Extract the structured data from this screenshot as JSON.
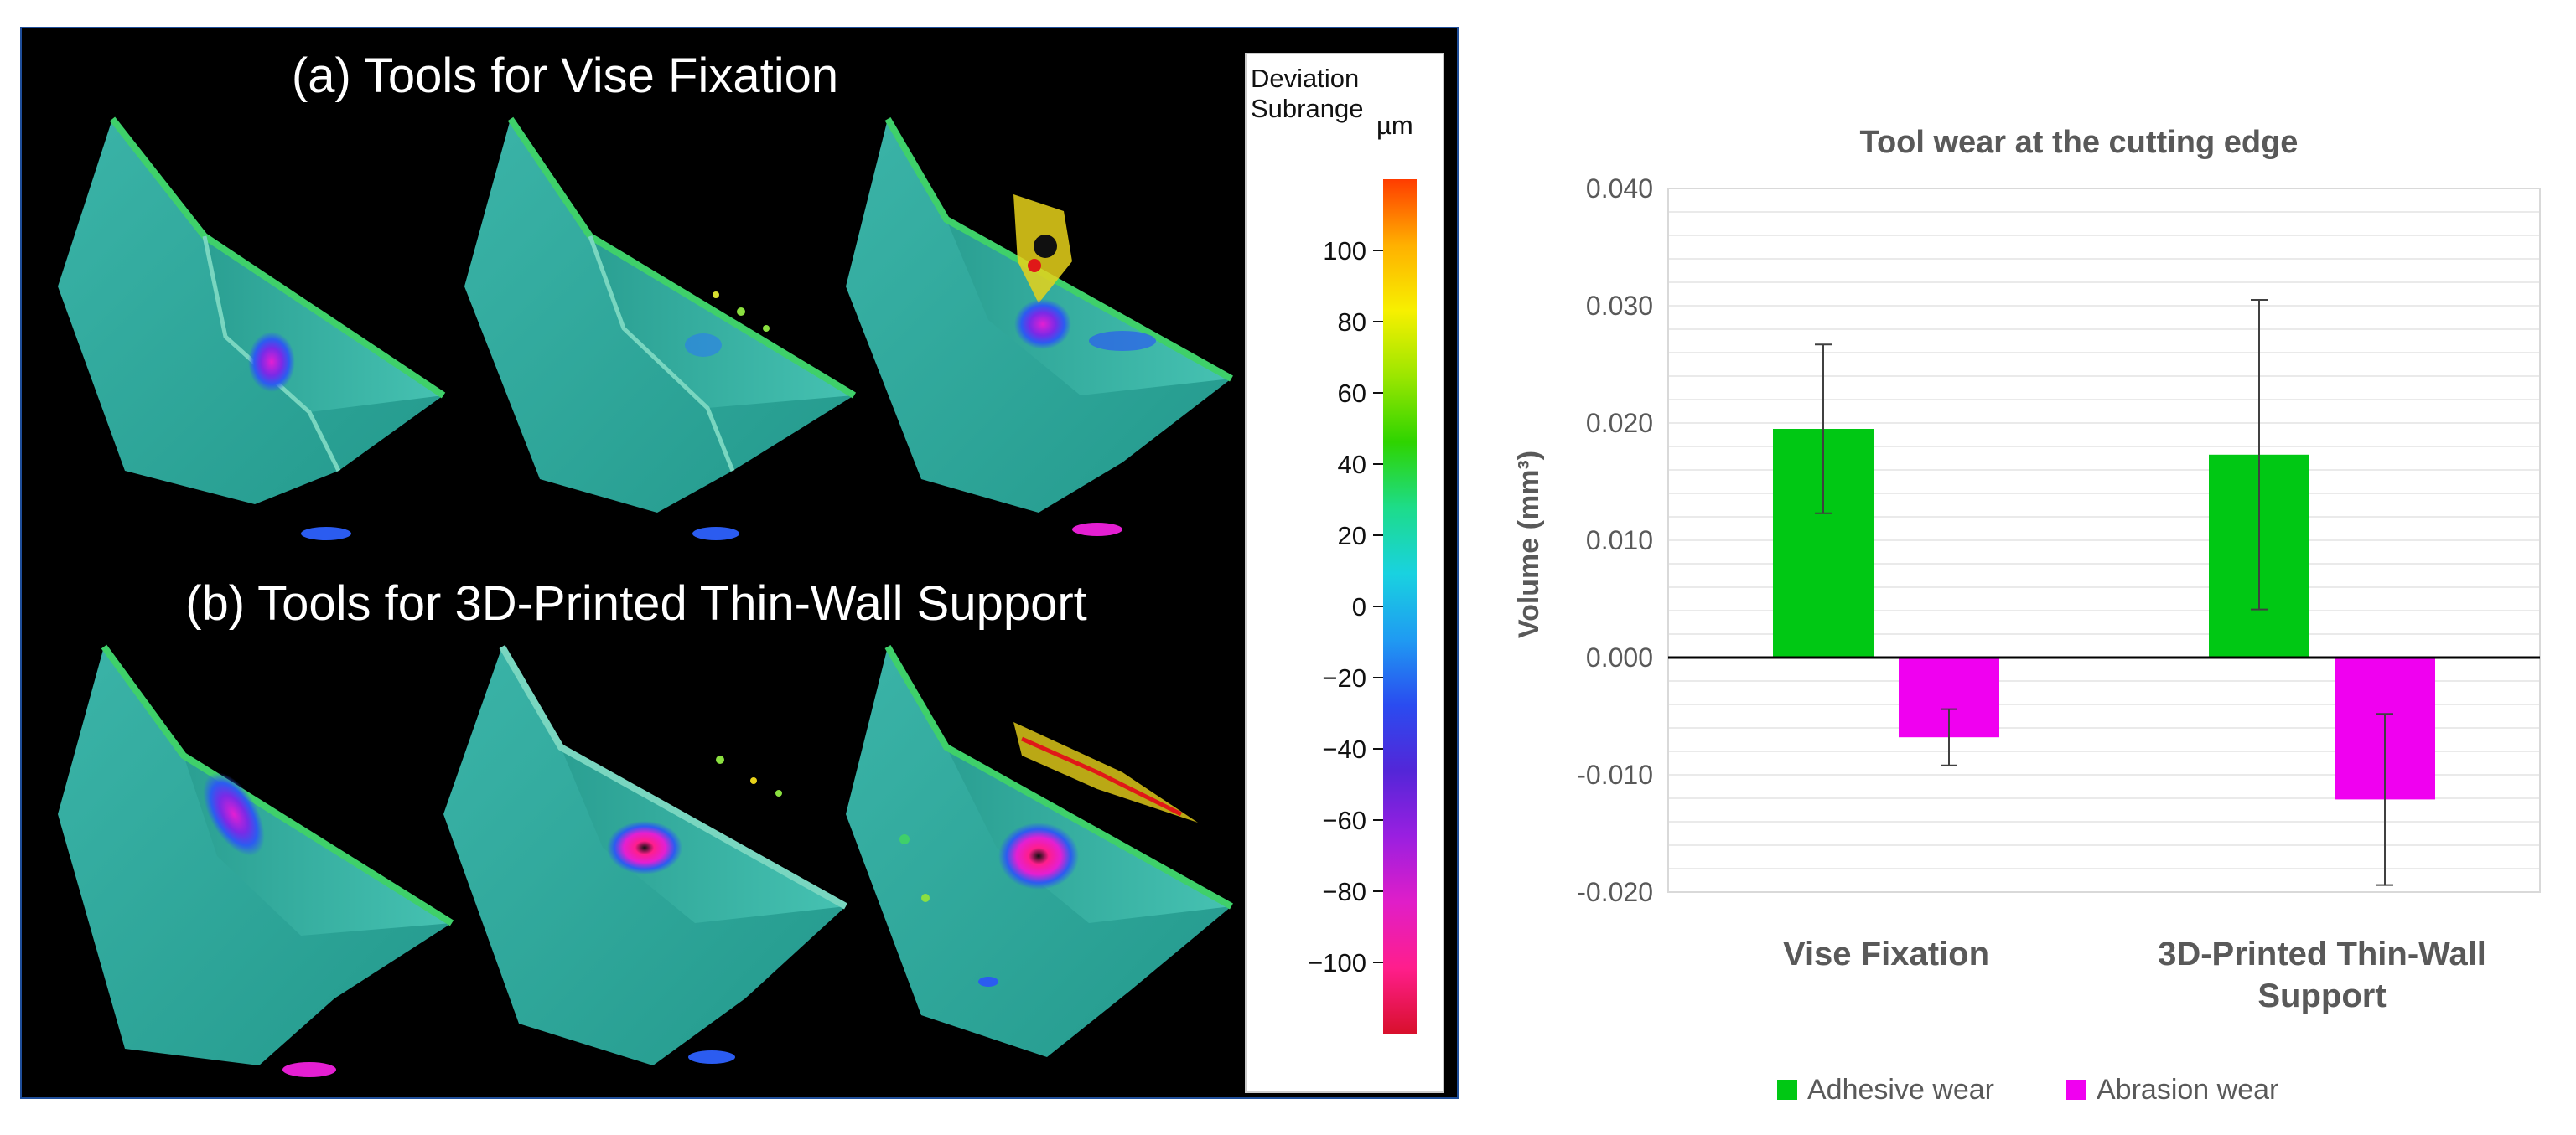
{
  "left_figure": {
    "label_a": "(a) Tools for Vise Fixation",
    "label_b": "(b) Tools for 3D-Printed Thin-Wall Support",
    "colorbar": {
      "title_line1": "Deviation",
      "title_line2": "Subrange",
      "unit": "µm",
      "range": [
        -120,
        120
      ],
      "ticks": [
        {
          "value": 100,
          "label": "100"
        },
        {
          "value": 80,
          "label": "80"
        },
        {
          "value": 60,
          "label": "60"
        },
        {
          "value": 40,
          "label": "40"
        },
        {
          "value": 20,
          "label": "20"
        },
        {
          "value": 0,
          "label": "0"
        },
        {
          "value": -20,
          "label": "−20"
        },
        {
          "value": -40,
          "label": "−40"
        },
        {
          "value": -60,
          "label": "−60"
        },
        {
          "value": -80,
          "label": "−80"
        },
        {
          "value": -100,
          "label": "−100"
        }
      ],
      "gradient_colors": [
        "#ff3c00",
        "#ffb000",
        "#f7f000",
        "#9be600",
        "#2ed400",
        "#1ddc8a",
        "#19d2e0",
        "#1f9bf2",
        "#2a4cf0",
        "#5326d8",
        "#9a1fe0",
        "#e01ec8",
        "#ff1e8c",
        "#d8102c"
      ]
    },
    "tool_colors": {
      "surface": "#2ea89a",
      "edge_green": "#3fd06a",
      "wear_blue": "#2b5cf0",
      "wear_magenta": "#e41fd2",
      "wear_yellow": "#f0d21a",
      "wear_red": "#e01818"
    }
  },
  "chart_data": {
    "type": "bar",
    "title": "Tool wear at the cutting edge",
    "ylabel": "Volume (mm³)",
    "xlabel": "",
    "ylim": [
      -0.02,
      0.04
    ],
    "yticks": [
      {
        "value": 0.04,
        "label": "0.040"
      },
      {
        "value": 0.03,
        "label": "0.030"
      },
      {
        "value": 0.02,
        "label": "0.020"
      },
      {
        "value": 0.01,
        "label": "0.010"
      },
      {
        "value": 0.0,
        "label": "0.000"
      },
      {
        "value": -0.01,
        "label": "-0.010"
      },
      {
        "value": -0.02,
        "label": "-0.020"
      }
    ],
    "minor_grid_step": 0.002,
    "categories": [
      {
        "line1": "Vise Fixation",
        "line2": ""
      },
      {
        "line1": "3D-Printed Thin-Wall",
        "line2": "Support"
      }
    ],
    "series": [
      {
        "name": "Adhesive wear",
        "color": "#00c814",
        "values": [
          0.0195,
          0.0173
        ],
        "errors": [
          0.0072,
          0.0132
        ]
      },
      {
        "name": "Abrasion wear",
        "color": "#f000f0",
        "values": [
          -0.0068,
          -0.0121
        ],
        "errors": [
          0.0024,
          0.0073
        ]
      }
    ],
    "legend_position": "bottom-center"
  }
}
